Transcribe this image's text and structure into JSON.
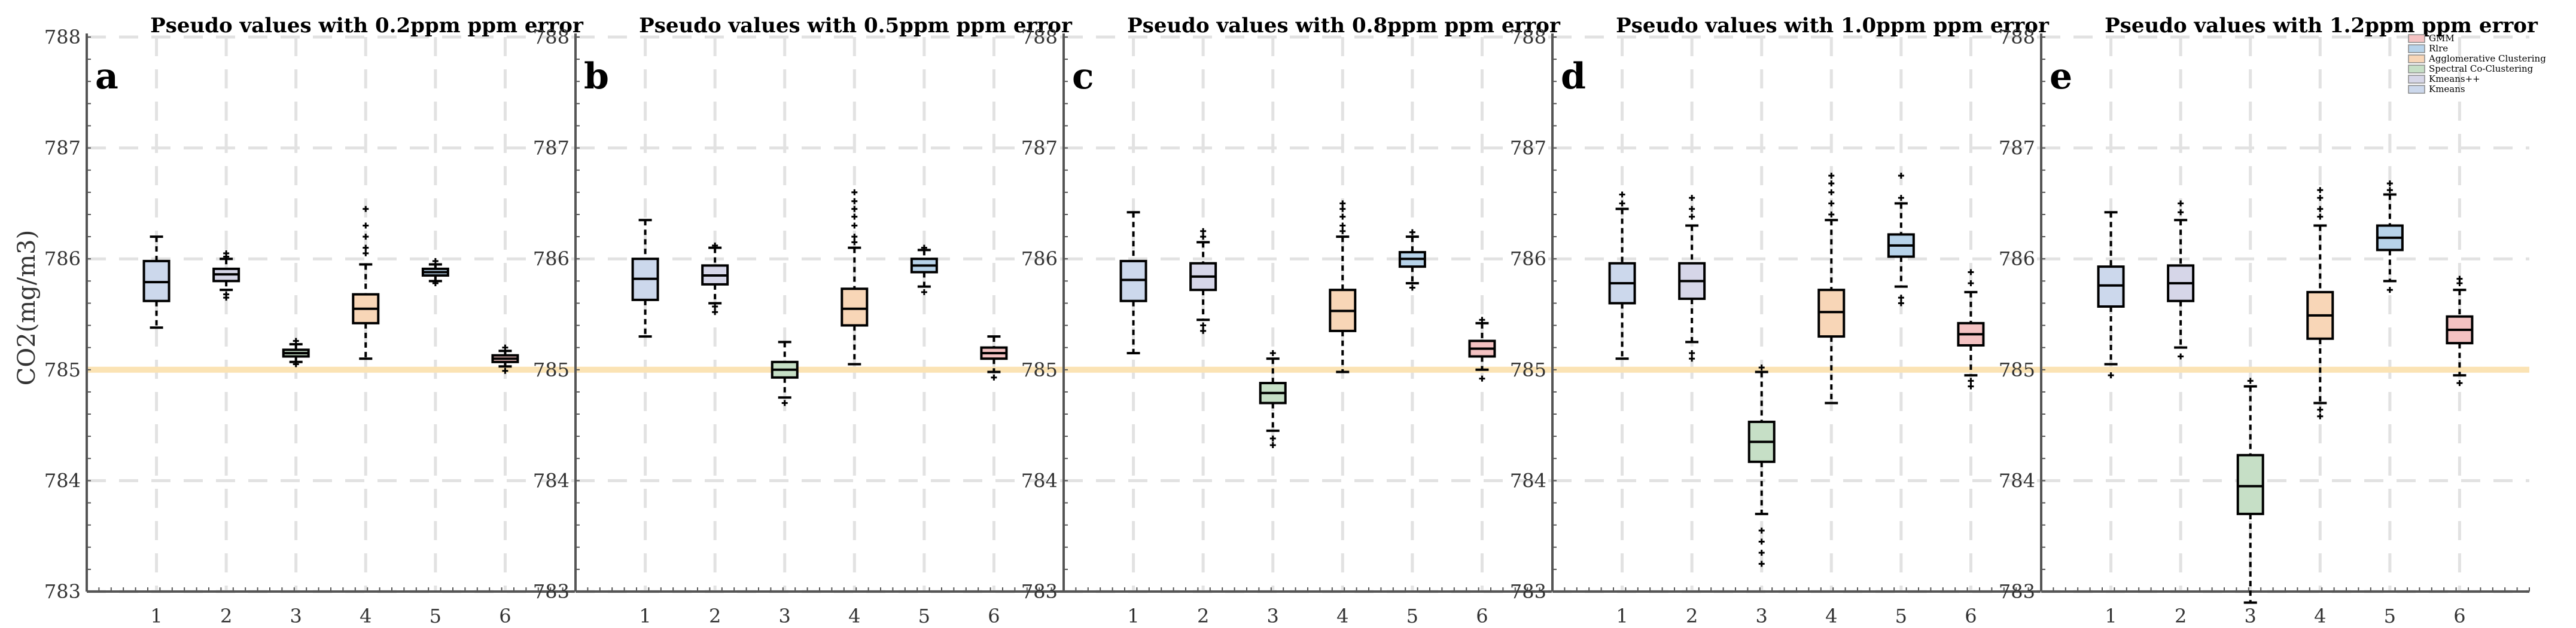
{
  "figure": {
    "ylabel": "CO2(mg/m3)"
  },
  "legend": {
    "entries": [
      {
        "label": "GMM",
        "color": "#f4c2c2"
      },
      {
        "label": "Rlre",
        "color": "#b7d3ea"
      },
      {
        "label": "Agglomerative Clustering",
        "color": "#f8d6b7"
      },
      {
        "label": "Spectral Co-Clustering",
        "color": "#c6dfc6"
      },
      {
        "label": "Kmeans++",
        "color": "#d6d6e8"
      },
      {
        "label": "Kmeans",
        "color": "#ccd8ec"
      }
    ]
  },
  "chart_data": [
    {
      "type": "box",
      "label": "a",
      "title": "Pseudo values with 0.2ppm ppm error",
      "ylabel": "CO2(mg/m3)",
      "ylim": [
        783,
        788
      ],
      "yticks": [
        "783",
        "784",
        "785",
        "786",
        "787",
        "788"
      ],
      "categories": [
        "1",
        "2",
        "3",
        "4",
        "5",
        "6"
      ],
      "reference_line": 785,
      "boxes": [
        {
          "category": "1",
          "whisker_low": 785.38,
          "q1": 785.62,
          "median": 785.79,
          "q3": 785.98,
          "whisker_high": 786.2,
          "color": "#ccd8ec",
          "outliers": []
        },
        {
          "category": "2",
          "whisker_low": 785.72,
          "q1": 785.8,
          "median": 785.86,
          "q3": 785.91,
          "whisker_high": 786.0,
          "color": "#d6d6e8",
          "outliers": [
            785.65,
            785.68,
            786.02,
            786.05
          ]
        },
        {
          "category": "3",
          "whisker_low": 785.07,
          "q1": 785.12,
          "median": 785.15,
          "q3": 785.18,
          "whisker_high": 785.23,
          "color": "#c6dfc6",
          "outliers": [
            785.05,
            785.26
          ]
        },
        {
          "category": "4",
          "whisker_low": 785.1,
          "q1": 785.42,
          "median": 785.55,
          "q3": 785.68,
          "whisker_high": 785.95,
          "color": "#f8d6b7",
          "outliers": [
            786.05,
            786.1,
            786.2,
            786.3,
            786.45
          ]
        },
        {
          "category": "5",
          "whisker_low": 785.8,
          "q1": 785.85,
          "median": 785.88,
          "q3": 785.91,
          "whisker_high": 785.95,
          "color": "#b7d3ea",
          "outliers": [
            785.78,
            785.98
          ]
        },
        {
          "category": "6",
          "whisker_low": 785.03,
          "q1": 785.07,
          "median": 785.1,
          "q3": 785.13,
          "whisker_high": 785.17,
          "color": "#f4c2c2",
          "outliers": [
            784.99,
            785.2
          ]
        }
      ]
    },
    {
      "type": "box",
      "label": "b",
      "title": "Pseudo values with 0.5ppm ppm error",
      "ylabel": "",
      "ylim": [
        783,
        788
      ],
      "yticks": [
        "783",
        "784",
        "785",
        "786",
        "787",
        "788"
      ],
      "categories": [
        "1",
        "2",
        "3",
        "4",
        "5",
        "6"
      ],
      "reference_line": 785,
      "boxes": [
        {
          "category": "1",
          "whisker_low": 785.3,
          "q1": 785.63,
          "median": 785.82,
          "q3": 786.0,
          "whisker_high": 786.35,
          "color": "#ccd8ec",
          "outliers": []
        },
        {
          "category": "2",
          "whisker_low": 785.6,
          "q1": 785.77,
          "median": 785.85,
          "q3": 785.94,
          "whisker_high": 786.1,
          "color": "#d6d6e8",
          "outliers": [
            785.52,
            785.57,
            786.12
          ]
        },
        {
          "category": "3",
          "whisker_low": 784.75,
          "q1": 784.93,
          "median": 785.0,
          "q3": 785.07,
          "whisker_high": 785.25,
          "color": "#c6dfc6",
          "outliers": [
            784.7
          ]
        },
        {
          "category": "4",
          "whisker_low": 785.05,
          "q1": 785.4,
          "median": 785.55,
          "q3": 785.73,
          "whisker_high": 786.1,
          "color": "#f8d6b7",
          "outliers": [
            786.15,
            786.2,
            786.3,
            786.38,
            786.45,
            786.52,
            786.6
          ]
        },
        {
          "category": "5",
          "whisker_low": 785.75,
          "q1": 785.88,
          "median": 785.94,
          "q3": 786.0,
          "whisker_high": 786.08,
          "color": "#b7d3ea",
          "outliers": [
            785.7,
            786.1
          ]
        },
        {
          "category": "6",
          "whisker_low": 784.98,
          "q1": 785.1,
          "median": 785.15,
          "q3": 785.2,
          "whisker_high": 785.3,
          "color": "#f4c2c2",
          "outliers": [
            784.93
          ]
        }
      ]
    },
    {
      "type": "box",
      "label": "c",
      "title": "Pseudo values with 0.8ppm ppm error",
      "ylabel": "",
      "ylim": [
        783,
        788
      ],
      "yticks": [
        "783",
        "784",
        "785",
        "786",
        "787",
        "788"
      ],
      "categories": [
        "1",
        "2",
        "3",
        "4",
        "5",
        "6"
      ],
      "reference_line": 785,
      "boxes": [
        {
          "category": "1",
          "whisker_low": 785.15,
          "q1": 785.62,
          "median": 785.81,
          "q3": 785.98,
          "whisker_high": 786.42,
          "color": "#ccd8ec",
          "outliers": []
        },
        {
          "category": "2",
          "whisker_low": 785.45,
          "q1": 785.72,
          "median": 785.84,
          "q3": 785.96,
          "whisker_high": 786.15,
          "color": "#d6d6e8",
          "outliers": [
            785.35,
            785.4,
            786.2,
            786.25
          ]
        },
        {
          "category": "3",
          "whisker_low": 784.45,
          "q1": 784.7,
          "median": 784.79,
          "q3": 784.88,
          "whisker_high": 785.1,
          "color": "#c6dfc6",
          "outliers": [
            784.32,
            784.38,
            785.15
          ]
        },
        {
          "category": "4",
          "whisker_low": 784.98,
          "q1": 785.35,
          "median": 785.53,
          "q3": 785.72,
          "whisker_high": 786.2,
          "color": "#f8d6b7",
          "outliers": [
            786.25,
            786.3,
            786.38,
            786.45,
            786.5
          ]
        },
        {
          "category": "5",
          "whisker_low": 785.78,
          "q1": 785.93,
          "median": 786.0,
          "q3": 786.06,
          "whisker_high": 786.2,
          "color": "#b7d3ea",
          "outliers": [
            785.74,
            786.24
          ]
        },
        {
          "category": "6",
          "whisker_low": 785.0,
          "q1": 785.12,
          "median": 785.19,
          "q3": 785.26,
          "whisker_high": 785.42,
          "color": "#f4c2c2",
          "outliers": [
            784.92,
            785.45
          ]
        }
      ]
    },
    {
      "type": "box",
      "label": "d",
      "title": "Pseudo values with 1.0ppm ppm error",
      "ylabel": "",
      "ylim": [
        783,
        788
      ],
      "yticks": [
        "783",
        "784",
        "785",
        "786",
        "787",
        "788"
      ],
      "categories": [
        "1",
        "2",
        "3",
        "4",
        "5",
        "6"
      ],
      "reference_line": 785,
      "boxes": [
        {
          "category": "1",
          "whisker_low": 785.1,
          "q1": 785.6,
          "median": 785.78,
          "q3": 785.96,
          "whisker_high": 786.45,
          "color": "#ccd8ec",
          "outliers": [
            786.5,
            786.58
          ]
        },
        {
          "category": "2",
          "whisker_low": 785.25,
          "q1": 785.64,
          "median": 785.8,
          "q3": 785.96,
          "whisker_high": 786.3,
          "color": "#d6d6e8",
          "outliers": [
            785.1,
            785.15,
            786.38,
            786.45,
            786.55
          ]
        },
        {
          "category": "3",
          "whisker_low": 783.7,
          "q1": 784.17,
          "median": 784.35,
          "q3": 784.53,
          "whisker_high": 784.98,
          "color": "#c6dfc6",
          "outliers": [
            783.25,
            783.35,
            783.45,
            783.55,
            785.02
          ]
        },
        {
          "category": "4",
          "whisker_low": 784.7,
          "q1": 785.3,
          "median": 785.52,
          "q3": 785.72,
          "whisker_high": 786.35,
          "color": "#f8d6b7",
          "outliers": [
            786.4,
            786.5,
            786.6,
            786.68,
            786.75
          ]
        },
        {
          "category": "5",
          "whisker_low": 785.75,
          "q1": 786.02,
          "median": 786.12,
          "q3": 786.22,
          "whisker_high": 786.5,
          "color": "#b7d3ea",
          "outliers": [
            785.6,
            785.65,
            786.55,
            786.75
          ]
        },
        {
          "category": "6",
          "whisker_low": 784.95,
          "q1": 785.22,
          "median": 785.32,
          "q3": 785.42,
          "whisker_high": 785.7,
          "color": "#f4c2c2",
          "outliers": [
            784.85,
            784.9,
            785.78,
            785.88
          ]
        }
      ]
    },
    {
      "type": "box",
      "label": "e",
      "title": "Pseudo values with 1.2ppm ppm error",
      "ylabel": "",
      "ylim": [
        783,
        788
      ],
      "yticks": [
        "783",
        "784",
        "785",
        "786",
        "787",
        "788"
      ],
      "categories": [
        "1",
        "2",
        "3",
        "4",
        "5",
        "6"
      ],
      "reference_line": 785,
      "boxes": [
        {
          "category": "1",
          "whisker_low": 785.05,
          "q1": 785.57,
          "median": 785.76,
          "q3": 785.93,
          "whisker_high": 786.42,
          "color": "#ccd8ec",
          "outliers": [
            784.95
          ]
        },
        {
          "category": "2",
          "whisker_low": 785.2,
          "q1": 785.62,
          "median": 785.78,
          "q3": 785.94,
          "whisker_high": 786.35,
          "color": "#d6d6e8",
          "outliers": [
            785.12,
            786.42,
            786.5
          ]
        },
        {
          "category": "3",
          "whisker_low": 782.9,
          "q1": 783.7,
          "median": 783.95,
          "q3": 784.23,
          "whisker_high": 784.85,
          "color": "#c6dfc6",
          "outliers": [
            784.9
          ]
        },
        {
          "category": "4",
          "whisker_low": 784.7,
          "q1": 785.28,
          "median": 785.49,
          "q3": 785.7,
          "whisker_high": 786.3,
          "color": "#f8d6b7",
          "outliers": [
            784.58,
            784.64,
            786.38,
            786.45,
            786.55,
            786.62
          ]
        },
        {
          "category": "5",
          "whisker_low": 785.8,
          "q1": 786.08,
          "median": 786.19,
          "q3": 786.3,
          "whisker_high": 786.58,
          "color": "#b7d3ea",
          "outliers": [
            785.72,
            786.62,
            786.68
          ]
        },
        {
          "category": "6",
          "whisker_low": 784.95,
          "q1": 785.24,
          "median": 785.36,
          "q3": 785.48,
          "whisker_high": 785.72,
          "color": "#f4c2c2",
          "outliers": [
            784.88,
            785.78,
            785.82
          ]
        }
      ]
    }
  ]
}
